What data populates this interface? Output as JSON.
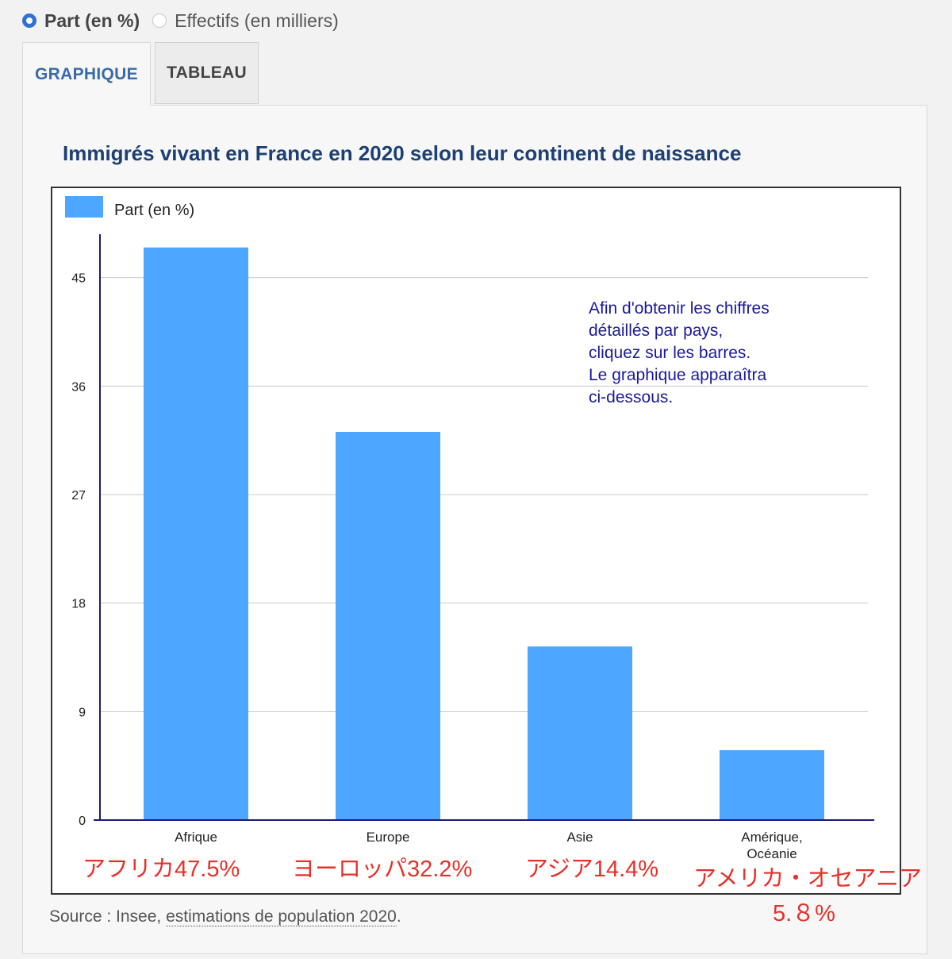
{
  "radio": {
    "option1": "Part (en %)",
    "option2": "Effectifs (en milliers)"
  },
  "tabs": {
    "graphique": "GRAPHIQUE",
    "tableau": "TABLEAU"
  },
  "chart_data": {
    "type": "bar",
    "title": "Immigrés vivant en France en 2020 selon leur continent de naissance",
    "legend": "Part (en %)",
    "categories": [
      "Afrique",
      "Europe",
      "Asie",
      "Amérique, Océanie"
    ],
    "category_lines": [
      [
        "Afrique"
      ],
      [
        "Europe"
      ],
      [
        "Asie"
      ],
      [
        "Amérique,",
        "Océanie"
      ]
    ],
    "values": [
      47.5,
      32.2,
      14.4,
      5.8
    ],
    "ylim": [
      0,
      48.6
    ],
    "yticks": [
      0,
      9,
      18,
      27,
      36,
      45
    ],
    "grid": true,
    "bar_color": "#4da6ff",
    "axis_color": "#1a1a7a",
    "note_lines": [
      "Afin d'obtenir les chiffres",
      "détaillés par pays,",
      "cliquez sur les barres.",
      "Le graphique apparaîtra",
      "ci-dessous."
    ],
    "note_color": "#1a1a9a"
  },
  "source": {
    "prefix": "Source : Insee, ",
    "link": "estimations de population 2020",
    "suffix": "."
  },
  "annotations": {
    "afrique": "アフリカ47.5%",
    "europe": "ヨーロッパ32.2%",
    "asie": "アジア14.4%",
    "amerique_line1": "アメリカ・オセアニア",
    "amerique_line2": "5.８%"
  }
}
